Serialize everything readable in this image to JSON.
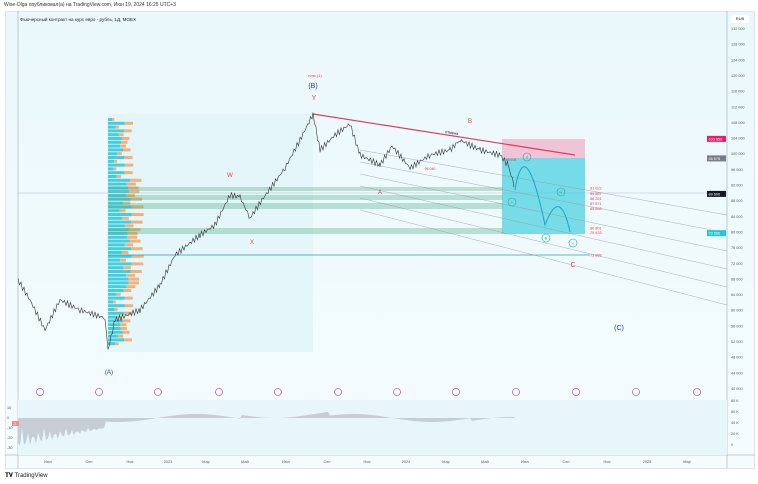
{
  "header": {
    "published": "Wise-Olga опубликовал(а) на TradingView.com, Июн 19, 2024 16:25 UTC+3"
  },
  "chart": {
    "title": "Фьючерсный контракт на курс евро - рубль, 1Д, MOEX",
    "currency": "RUB",
    "price_ticks": [
      "132 000",
      "128 000",
      "124 000",
      "120 000",
      "116 000",
      "112 000",
      "108 000",
      "104 000",
      "100 000",
      "96 000",
      "92 000",
      "88 000",
      "84 000",
      "80 000",
      "76 000",
      "72 000",
      "68 000",
      "64 000",
      "60 000",
      "56 000",
      "52 000",
      "48 000",
      "44 000",
      "40 000"
    ],
    "price_badges": [
      {
        "label": "103 659",
        "price": 103659,
        "color": "#e91e63"
      },
      {
        "label": "98 675",
        "price": 98675,
        "color": "#787b86"
      },
      {
        "label": "89 600",
        "price": 89600,
        "color": "#131722"
      },
      {
        "label": "79 566",
        "price": 79566,
        "color": "#26c6da"
      }
    ],
    "levels": [
      {
        "label": "91 022",
        "price": 91022
      },
      {
        "label": "89 567",
        "price": 89567
      },
      {
        "label": "88 251",
        "price": 88251
      },
      {
        "label": "87 571",
        "price": 87571
      },
      {
        "label": "85 863",
        "price": 85863
      },
      {
        "label": "80 801",
        "price": 80801
      },
      {
        "label": "79 633",
        "price": 79633
      },
      {
        "label": "73 898",
        "price": 73898
      }
    ],
    "annotations": {
      "wave_1_label": "нлю (1)",
      "B_big": "(B)",
      "Y": "Y",
      "W": "W",
      "X": "X",
      "A_big": "(A)",
      "A": "A",
      "B": "B",
      "C": "C",
      "C_big": "(C)",
      "otmena": "отмена",
      "low_label": "96 040",
      "target_label": "98 606",
      "w3": "iii",
      "w4": "iv",
      "w5": "v",
      "w1": "i",
      "w2": "ii"
    },
    "time_labels": [
      "Июл",
      "Сен",
      "Ноя",
      "2023",
      "Мар",
      "Май",
      "Июл",
      "Сен",
      "Ноя",
      "2024",
      "Мар",
      "Май",
      "Июл",
      "Сен",
      "Ноя",
      "2025",
      "Мар"
    ],
    "osc_ticks": [
      "10",
      "0",
      "-10",
      "-20",
      "-30"
    ],
    "osc_badge": "-5",
    "vol_ticks": [
      "80 K",
      "60 K",
      "40 K",
      "20 K",
      "0"
    ],
    "colors": {
      "accent": "#26c6da",
      "red": "#e53950",
      "wave": "#283593"
    }
  },
  "footer": {
    "brand": "TradingView"
  }
}
